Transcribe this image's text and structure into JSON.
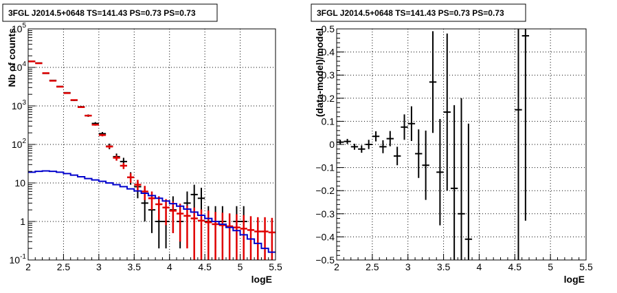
{
  "chart_data": [
    {
      "type": "scatter",
      "title": "3FGL J2014.5+0648 TS=141.43 PS=0.73 PS=0.73",
      "xlabel": "logE",
      "ylabel": "Nb of counts",
      "xlim": [
        2,
        5.5
      ],
      "ylim": [
        0.1,
        100000
      ],
      "yscale": "log",
      "grid": true,
      "x_ticks": [
        "2",
        "2.5",
        "3",
        "3.5",
        "4",
        "4.5",
        "5",
        "5.5"
      ],
      "y_ticks": [
        "10^{-1}",
        "1",
        "10",
        "10^{2}",
        "10^{3}",
        "10^{4}",
        "10^{5}"
      ],
      "y_tick_labels": [
        {
          "base": "10",
          "exp": "-1"
        },
        {
          "base": "1",
          "exp": ""
        },
        {
          "base": "10",
          "exp": ""
        },
        {
          "base": "10",
          "exp": "2"
        },
        {
          "base": "10",
          "exp": "3"
        },
        {
          "base": "10",
          "exp": "4"
        },
        {
          "base": "10",
          "exp": "5"
        }
      ],
      "series": [
        {
          "name": "",
          "role": "data",
          "color": "#000000",
          "x": [
            2.05,
            2.15,
            2.25,
            2.35,
            2.45,
            2.55,
            2.65,
            2.75,
            2.85,
            2.95,
            3.05,
            3.15,
            3.25,
            3.35,
            3.45,
            3.55,
            3.65,
            3.75,
            3.85,
            3.95,
            4.05,
            4.15,
            4.25,
            4.35,
            4.45,
            4.55,
            4.65,
            4.75,
            4.85,
            4.95,
            5.05,
            5.15,
            5.25,
            5.35,
            5.45
          ],
          "y": [
            14500,
            13000,
            7000,
            4600,
            3200,
            2200,
            1400,
            950,
            560,
            350,
            190,
            90,
            48,
            36,
            14,
            8,
            3,
            2,
            1,
            1,
            2,
            1,
            3,
            5,
            4,
            1,
            1,
            1,
            0,
            1,
            1,
            0,
            0,
            0,
            0
          ],
          "yerr_low": [
            200,
            180,
            130,
            100,
            90,
            80,
            60,
            50,
            40,
            30,
            20,
            15,
            10,
            9,
            5,
            4,
            2,
            1.5,
            0.8,
            0.8,
            1.5,
            0.8,
            2,
            3,
            2.5,
            0.8,
            0.8,
            0.8,
            0,
            0.8,
            0.8,
            0,
            0,
            0,
            0
          ],
          "yerr_high": [
            200,
            180,
            130,
            100,
            90,
            80,
            60,
            50,
            40,
            30,
            20,
            15,
            10,
            9,
            5,
            4,
            3,
            2.5,
            1.5,
            1.5,
            2.5,
            1.5,
            3,
            4,
            3.5,
            1.5,
            1.5,
            1.5,
            0,
            1.5,
            1.5,
            0,
            0,
            0,
            0
          ]
        },
        {
          "name": "",
          "role": "model",
          "color": "#e00000",
          "x": [
            2.05,
            2.15,
            2.25,
            2.35,
            2.45,
            2.55,
            2.65,
            2.75,
            2.85,
            2.95,
            3.05,
            3.15,
            3.25,
            3.35,
            3.45,
            3.55,
            3.65,
            3.75,
            3.85,
            3.95,
            4.05,
            4.15,
            4.25,
            4.35,
            4.45,
            4.55,
            4.65,
            4.75,
            4.85,
            4.95,
            5.05,
            5.15,
            5.25,
            5.35,
            5.45
          ],
          "y": [
            14300,
            12800,
            7100,
            4500,
            3150,
            2150,
            1420,
            930,
            560,
            325,
            175,
            88,
            45,
            28,
            14,
            9,
            6,
            4,
            2.8,
            2.3,
            1.9,
            1.6,
            1.4,
            1.2,
            1.05,
            0.95,
            0.85,
            0.8,
            0.75,
            0.7,
            0.65,
            0.6,
            0.55,
            0.55,
            0.52
          ],
          "yerr": [
            120,
            113,
            84,
            67,
            56,
            46,
            38,
            30,
            24,
            18,
            13,
            9,
            7,
            5,
            4,
            3,
            2.4,
            2,
            1.7,
            1.5,
            1.4,
            1.3,
            1.2,
            1.1,
            1.0,
            0.97,
            0.92,
            0.89,
            0.87,
            0.84,
            0.81,
            0.77,
            0.74,
            0.74,
            0.72
          ]
        },
        {
          "name": "",
          "role": "background",
          "color": "#0000cc",
          "type": "step",
          "x": [
            2.05,
            2.15,
            2.25,
            2.35,
            2.45,
            2.55,
            2.65,
            2.75,
            2.85,
            2.95,
            3.05,
            3.15,
            3.25,
            3.35,
            3.45,
            3.55,
            3.65,
            3.75,
            3.85,
            3.95,
            4.05,
            4.15,
            4.25,
            4.35,
            4.45,
            4.55,
            4.65,
            4.75,
            4.85,
            4.95,
            5.05,
            5.15,
            5.25,
            5.35,
            5.45
          ],
          "y": [
            19,
            20,
            20.5,
            20,
            19,
            17.5,
            16,
            14.5,
            13,
            12,
            11,
            10,
            9,
            8,
            7,
            6.2,
            5.4,
            4.7,
            4,
            3.4,
            2.9,
            2.5,
            2.1,
            1.75,
            1.45,
            1.2,
            1.0,
            0.85,
            0.7,
            0.58,
            0.45,
            0.35,
            0.27,
            0.2,
            0.16
          ]
        }
      ]
    },
    {
      "type": "scatter",
      "title": "3FGL J2014.5+0648 TS=141.43 PS=0.73 PS=0.73",
      "xlabel": "logE",
      "ylabel": "(data-model)/model",
      "xlim": [
        2,
        5.5
      ],
      "ylim": [
        -0.5,
        0.5
      ],
      "grid": true,
      "x_ticks": [
        "2",
        "2.5",
        "3",
        "3.5",
        "4",
        "4.5",
        "5",
        "5.5"
      ],
      "y_ticks": [
        "−0.5",
        "−0.4",
        "−0.3",
        "−0.2",
        "−0.1",
        "0",
        "0.1",
        "0.2",
        "0.3",
        "0.4",
        "0.5"
      ],
      "series": [
        {
          "name": "",
          "color": "#000000",
          "x": [
            2.05,
            2.15,
            2.25,
            2.35,
            2.45,
            2.55,
            2.65,
            2.75,
            2.85,
            2.95,
            3.05,
            3.15,
            3.25,
            3.35,
            3.45,
            3.55,
            3.65,
            3.75,
            3.85,
            4.55,
            4.65
          ],
          "y": [
            0.01,
            0.013,
            -0.01,
            -0.02,
            0.0,
            0.035,
            -0.01,
            0.025,
            -0.05,
            0.075,
            0.09,
            -0.04,
            -0.09,
            0.27,
            -0.12,
            0.14,
            -0.19,
            -0.3,
            -0.41,
            0.15,
            0.47
          ],
          "yerr": [
            0.01,
            0.011,
            0.013,
            0.016,
            0.02,
            0.022,
            0.028,
            0.033,
            0.04,
            0.055,
            0.075,
            0.105,
            0.15,
            0.22,
            0.23,
            0.34,
            0.36,
            0.5,
            0.5,
            0.8,
            0.8
          ]
        }
      ]
    }
  ]
}
